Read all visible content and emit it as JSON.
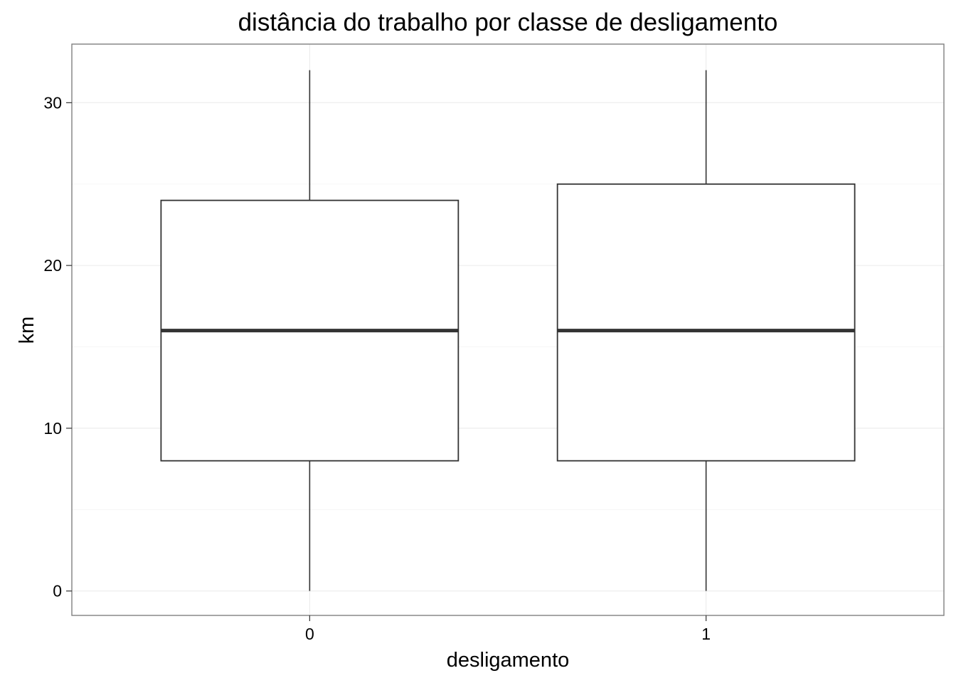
{
  "chart_data": {
    "type": "boxplot",
    "title": "distância do trabalho por classe de desligamento",
    "xlabel": "desligamento",
    "ylabel": "km",
    "categories": [
      "0",
      "1"
    ],
    "boxes": [
      {
        "category": "0",
        "min": 0,
        "q1": 8,
        "median": 16,
        "q3": 24,
        "max": 32
      },
      {
        "category": "1",
        "min": 0,
        "q1": 8,
        "median": 16,
        "q3": 25,
        "max": 32
      }
    ],
    "ylim": [
      -1.5,
      33.6
    ],
    "yticks": [
      0,
      10,
      20,
      30
    ],
    "ytick_labels": [
      "0",
      "10",
      "20",
      "30"
    ],
    "grid": true,
    "colors": {
      "box_line": "#333333",
      "box_fill": "#ffffff",
      "grid": "#ebebeb",
      "panel_border": "#7f7f7f"
    }
  }
}
